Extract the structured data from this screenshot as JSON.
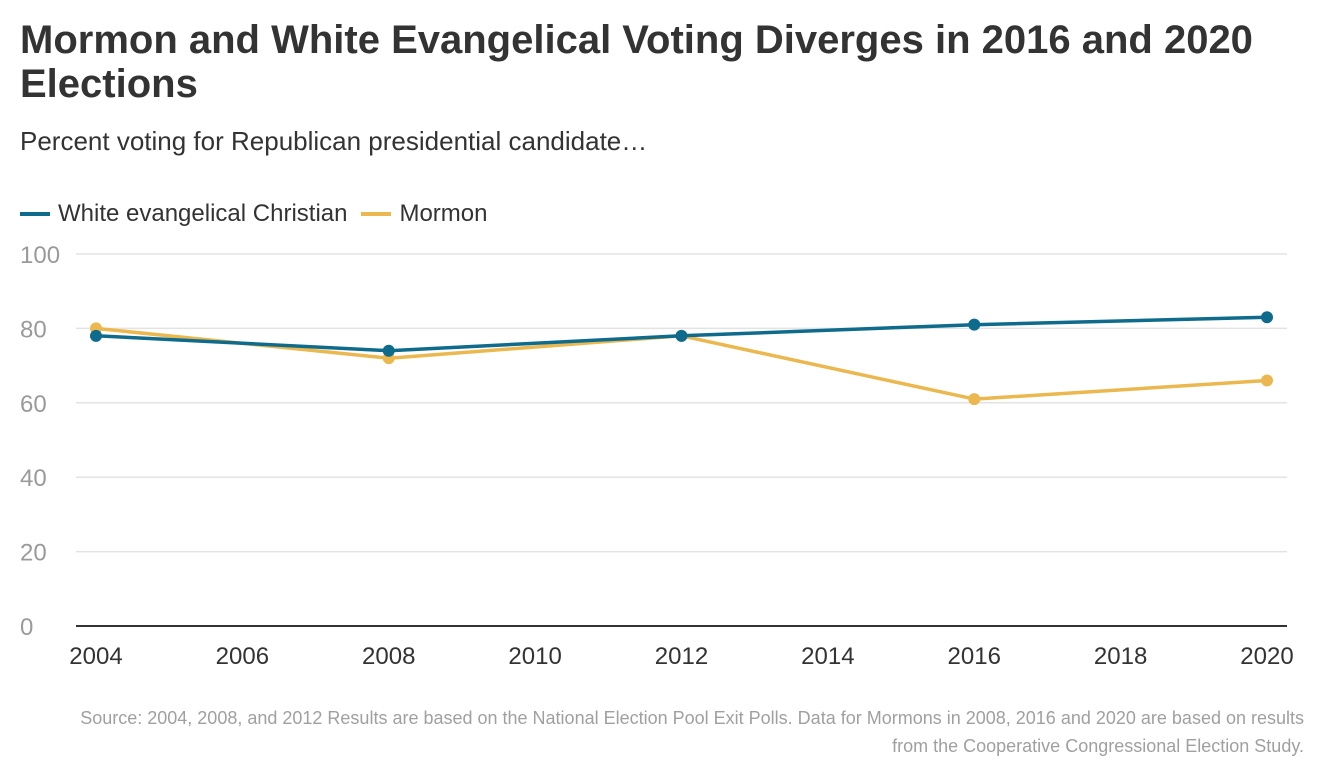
{
  "title": "Mormon and White Evangelical Voting Diverges in 2016 and 2020 Elections",
  "subtitle": "Percent voting for Republican presidential candidate…",
  "source": "Source: 2004, 2008, and 2012 Results are based on the National Election Pool Exit Polls. Data for Mormons in 2008, 2016 and 2020 are based on results from the Cooperative Congressional Election Study.",
  "colors": {
    "evangelical": "#0f6b8c",
    "mormon": "#eab84f",
    "grid": "#e3e3e3",
    "axis": "#333333",
    "tick_label": "#9a9a9a",
    "year_label": "#333333"
  },
  "chart_data": {
    "type": "line",
    "title": "Mormon and White Evangelical Voting Diverges in 2016 and 2020 Elections",
    "subtitle": "Percent voting for Republican presidential candidate…",
    "xlabel": "",
    "ylabel": "",
    "xlim": [
      2004,
      2020
    ],
    "ylim": [
      0,
      100
    ],
    "x_ticks": [
      2004,
      2006,
      2008,
      2010,
      2012,
      2014,
      2016,
      2018,
      2020
    ],
    "y_ticks": [
      0,
      20,
      40,
      60,
      80,
      100
    ],
    "grid": true,
    "legend_position": "top-left",
    "series": [
      {
        "name": "White evangelical Christian",
        "color": "#0f6b8c",
        "x": [
          2004,
          2008,
          2012,
          2016,
          2020
        ],
        "values": [
          78,
          74,
          78,
          81,
          83
        ]
      },
      {
        "name": "Mormon",
        "color": "#eab84f",
        "x": [
          2004,
          2008,
          2012,
          2016,
          2020
        ],
        "values": [
          80,
          72,
          78,
          61,
          66
        ]
      }
    ]
  }
}
